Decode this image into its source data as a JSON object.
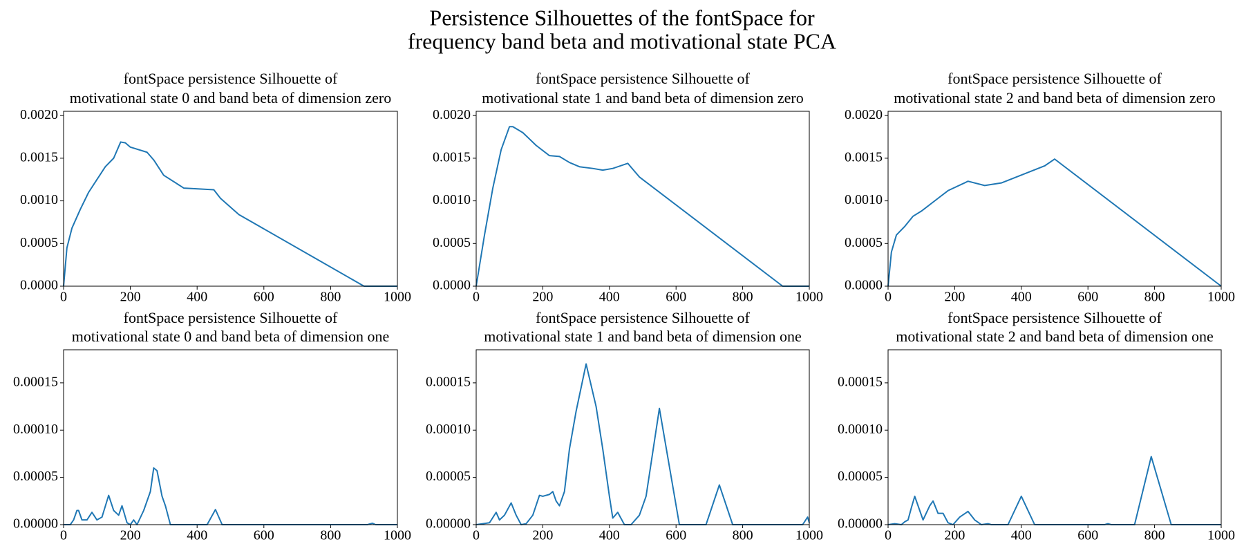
{
  "title": [
    "Persistence Silhouettes of the fontSpace for",
    "frequency band beta and motivational state PCA"
  ],
  "chart_data": [
    {
      "type": "line",
      "title": [
        "fontSpace persistence Silhouette of",
        "motivational state 0 and band beta of dimension zero"
      ],
      "color": "#1f77b4",
      "x": [
        0,
        10,
        25,
        50,
        75,
        100,
        125,
        150,
        171,
        185,
        200,
        250,
        270,
        300,
        340,
        360,
        450,
        470,
        525,
        900,
        1000
      ],
      "values": [
        0,
        0.00045,
        0.00068,
        0.0009,
        0.0011,
        0.00125,
        0.0014,
        0.0015,
        0.00169,
        0.00168,
        0.00163,
        0.00157,
        0.00148,
        0.0013,
        0.0012,
        0.00115,
        0.00113,
        0.00103,
        0.00084,
        0,
        0
      ],
      "xlim": [
        0,
        1000
      ],
      "xticks": [
        0,
        200,
        400,
        600,
        800,
        1000
      ],
      "ylim": [
        0,
        0.00205
      ],
      "yticks": [
        {
          "value": 0,
          "label": "0.0000"
        },
        {
          "value": 0.0005,
          "label": "0.0005"
        },
        {
          "value": 0.001,
          "label": "0.0010"
        },
        {
          "value": 0.0015,
          "label": "0.0015"
        },
        {
          "value": 0.002,
          "label": "0.0020"
        }
      ]
    },
    {
      "type": "line",
      "title": [
        "fontSpace persistence Silhouette of",
        "motivational state 1 and band beta of dimension zero"
      ],
      "color": "#1f77b4",
      "x": [
        0,
        25,
        50,
        75,
        100,
        110,
        140,
        180,
        220,
        250,
        280,
        310,
        350,
        380,
        410,
        455,
        490,
        920,
        1000
      ],
      "values": [
        0,
        0.0006,
        0.00115,
        0.0016,
        0.00187,
        0.00187,
        0.0018,
        0.00165,
        0.00153,
        0.00152,
        0.00145,
        0.0014,
        0.00138,
        0.00136,
        0.00138,
        0.00144,
        0.00128,
        0,
        0
      ],
      "xlim": [
        0,
        1000
      ],
      "xticks": [
        0,
        200,
        400,
        600,
        800,
        1000
      ],
      "ylim": [
        0,
        0.00205
      ],
      "yticks": [
        {
          "value": 0,
          "label": "0.0000"
        },
        {
          "value": 0.0005,
          "label": "0.0005"
        },
        {
          "value": 0.001,
          "label": "0.0010"
        },
        {
          "value": 0.0015,
          "label": "0.0015"
        },
        {
          "value": 0.002,
          "label": "0.0020"
        }
      ]
    },
    {
      "type": "line",
      "title": [
        "fontSpace persistence Silhouette of",
        "motivational state 2 and band beta of dimension zero"
      ],
      "color": "#1f77b4",
      "x": [
        0,
        10,
        25,
        50,
        75,
        100,
        150,
        180,
        240,
        290,
        340,
        470,
        500,
        1000
      ],
      "values": [
        0,
        0.0004,
        0.0006,
        0.0007,
        0.00082,
        0.00088,
        0.00103,
        0.00112,
        0.00123,
        0.00118,
        0.00121,
        0.00141,
        0.00149,
        0
      ],
      "xlim": [
        0,
        1000
      ],
      "xticks": [
        0,
        200,
        400,
        600,
        800,
        1000
      ],
      "ylim": [
        0,
        0.00205
      ],
      "yticks": [
        {
          "value": 0,
          "label": "0.0000"
        },
        {
          "value": 0.0005,
          "label": "0.0005"
        },
        {
          "value": 0.001,
          "label": "0.0010"
        },
        {
          "value": 0.0015,
          "label": "0.0015"
        },
        {
          "value": 0.002,
          "label": "0.0020"
        }
      ]
    },
    {
      "type": "line",
      "title": [
        "fontSpace persistence Silhouette of",
        "motivational state 0 and band beta of dimension one"
      ],
      "color": "#1f77b4",
      "x": [
        0,
        20,
        30,
        40,
        45,
        55,
        70,
        85,
        100,
        115,
        135,
        150,
        165,
        175,
        190,
        200,
        210,
        220,
        240,
        260,
        270,
        280,
        295,
        305,
        320,
        430,
        455,
        475,
        910,
        925,
        935,
        1000
      ],
      "values": [
        0,
        0,
        5e-06,
        1.5e-05,
        1.5e-05,
        5e-06,
        5e-06,
        1.3e-05,
        5e-06,
        8e-06,
        3.1e-05,
        1.5e-05,
        1e-05,
        2e-05,
        2e-06,
        0,
        5e-06,
        0,
        1.5e-05,
        3.5e-05,
        6e-05,
        5.7e-05,
        3e-05,
        2e-05,
        0,
        0,
        1.6e-05,
        0,
        0,
        1.5e-06,
        0,
        0
      ],
      "xlim": [
        0,
        1000
      ],
      "xticks": [
        0,
        200,
        400,
        600,
        800,
        1000
      ],
      "ylim": [
        0,
        0.000185
      ],
      "yticks": [
        {
          "value": 0,
          "label": "0.00000"
        },
        {
          "value": 5e-05,
          "label": "0.00005"
        },
        {
          "value": 0.0001,
          "label": "0.00010"
        },
        {
          "value": 0.00015,
          "label": "0.00015"
        }
      ]
    },
    {
      "type": "line",
      "title": [
        "fontSpace persistence Silhouette of",
        "motivational state 1 and band beta of dimension one"
      ],
      "color": "#1f77b4",
      "x": [
        0,
        40,
        60,
        70,
        85,
        105,
        120,
        135,
        150,
        170,
        190,
        200,
        220,
        230,
        240,
        250,
        265,
        280,
        300,
        330,
        360,
        380,
        400,
        410,
        425,
        445,
        465,
        490,
        510,
        550,
        610,
        690,
        730,
        770,
        980,
        995,
        1000
      ],
      "values": [
        0,
        2e-06,
        1.3e-05,
        5e-06,
        1e-05,
        2.3e-05,
        1e-05,
        0,
        1e-06,
        1e-05,
        3.1e-05,
        3e-05,
        3.2e-05,
        3.5e-05,
        2.5e-05,
        2e-05,
        3.5e-05,
        8e-05,
        0.00012,
        0.00017,
        0.000125,
        8e-05,
        3e-05,
        7e-06,
        1.3e-05,
        0,
        0,
        1e-05,
        3e-05,
        0.000123,
        0,
        0,
        4.2e-05,
        0,
        0,
        8e-06,
        2e-06
      ],
      "xlim": [
        0,
        1000
      ],
      "xticks": [
        0,
        200,
        400,
        600,
        800,
        1000
      ],
      "ylim": [
        0,
        0.000185
      ],
      "yticks": [
        {
          "value": 0,
          "label": "0.00000"
        },
        {
          "value": 5e-05,
          "label": "0.00005"
        },
        {
          "value": 0.0001,
          "label": "0.00010"
        },
        {
          "value": 0.00015,
          "label": "0.00015"
        }
      ]
    },
    {
      "type": "line",
      "title": [
        "fontSpace persistence Silhouette of",
        "motivational state 2 and band beta of dimension one"
      ],
      "color": "#1f77b4",
      "x": [
        0,
        20,
        40,
        50,
        60,
        70,
        80,
        95,
        105,
        125,
        135,
        150,
        165,
        180,
        195,
        215,
        240,
        260,
        280,
        300,
        310,
        360,
        400,
        440,
        650,
        660,
        670,
        740,
        790,
        850,
        1000
      ],
      "values": [
        0,
        1e-06,
        0,
        3e-06,
        5e-06,
        1.8e-05,
        3e-05,
        1.5e-05,
        5e-06,
        2e-05,
        2.5e-05,
        1.2e-05,
        1.2e-05,
        2e-06,
        0,
        8e-06,
        1.4e-05,
        5e-06,
        0,
        1e-06,
        0,
        0,
        3e-05,
        0,
        0,
        1e-06,
        0,
        0,
        7.2e-05,
        0,
        0
      ],
      "xlim": [
        0,
        1000
      ],
      "xticks": [
        0,
        200,
        400,
        600,
        800,
        1000
      ],
      "ylim": [
        0,
        0.000185
      ],
      "yticks": [
        {
          "value": 0,
          "label": "0.00000"
        },
        {
          "value": 5e-05,
          "label": "0.00005"
        },
        {
          "value": 0.0001,
          "label": "0.00010"
        },
        {
          "value": 0.00015,
          "label": "0.00015"
        }
      ]
    }
  ]
}
